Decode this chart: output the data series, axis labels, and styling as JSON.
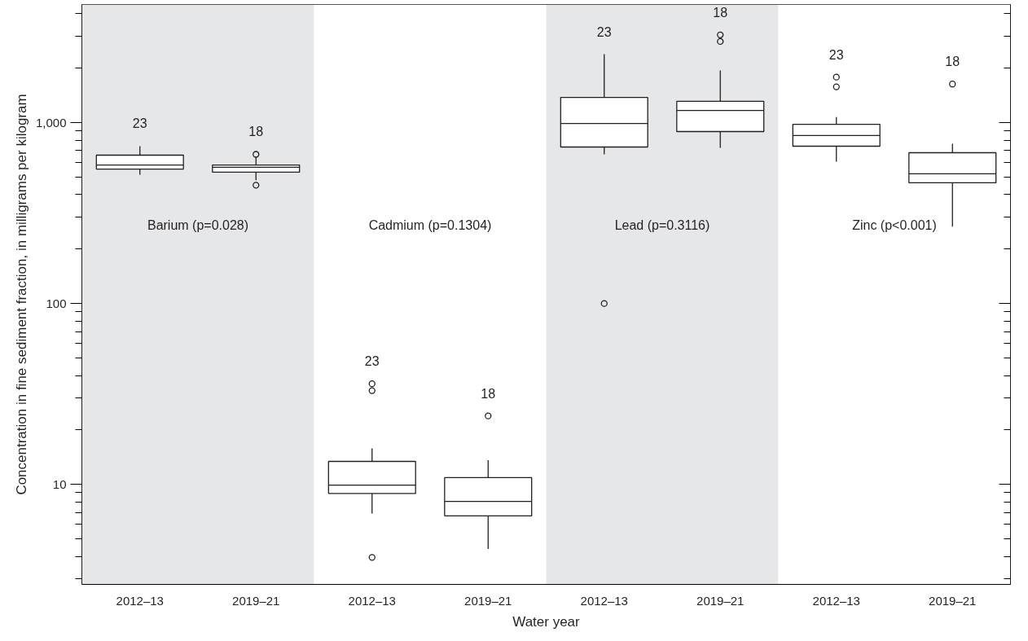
{
  "chart_data": {
    "type": "box",
    "xlabel": "Water year",
    "ylabel": "Concentration in fine sediment fraction, in milligrams per kilogram",
    "categories": [
      "2012–13",
      "2019–21",
      "2012–13",
      "2019–21",
      "2012–13",
      "2019–21",
      "2012–13",
      "2019–21"
    ],
    "boxes": [
      {
        "low": 516,
        "q1": 554,
        "median": 583,
        "q3": 661,
        "high": 741
      },
      {
        "low": 480,
        "q1": 532,
        "median": 566,
        "q3": 583,
        "high": 647,
        "outliers": [
          668,
          451
        ]
      },
      {
        "low": 6.9,
        "q1": 8.9,
        "median": 9.9,
        "q3": 13.4,
        "high": 15.8,
        "outliers": [
          36,
          33,
          3.95
        ]
      },
      {
        "low": 4.4,
        "q1": 6.7,
        "median": 8.05,
        "q3": 10.9,
        "high": 13.6,
        "outliers": [
          23.9
        ]
      },
      {
        "low": 668,
        "q1": 733,
        "median": 990,
        "q3": 1377,
        "high": 2390,
        "outliers": [
          100
        ]
      },
      {
        "low": 726,
        "q1": 893,
        "median": 1167,
        "q3": 1312,
        "high": 1942,
        "outliers": [
          3055,
          2810
        ]
      },
      {
        "low": 609,
        "q1": 741,
        "median": 848,
        "q3": 979,
        "high": 1074,
        "outliers": [
          1786,
          1578
        ]
      },
      {
        "low": 266,
        "q1": 465,
        "median": 521,
        "q3": 682,
        "high": 764,
        "outliers": [
          1634
        ]
      }
    ],
    "value_labels": [
      "23",
      "18",
      "23",
      "18",
      "23",
      "18",
      "23",
      "18"
    ],
    "color": "#ffffff",
    "log": true,
    "ylim": [
      2.8,
      4500
    ],
    "yticks": [
      {
        "value": 10,
        "label": "10"
      },
      {
        "value": 100,
        "label": "100"
      },
      {
        "value": 1000,
        "label": "1,000"
      }
    ],
    "annotations": [
      "Barium (p=0.028)",
      "Cadmium (p=0.1304)",
      "Lead (p=0.3116)",
      "Zinc (p<0.001)"
    ],
    "grid": false
  }
}
